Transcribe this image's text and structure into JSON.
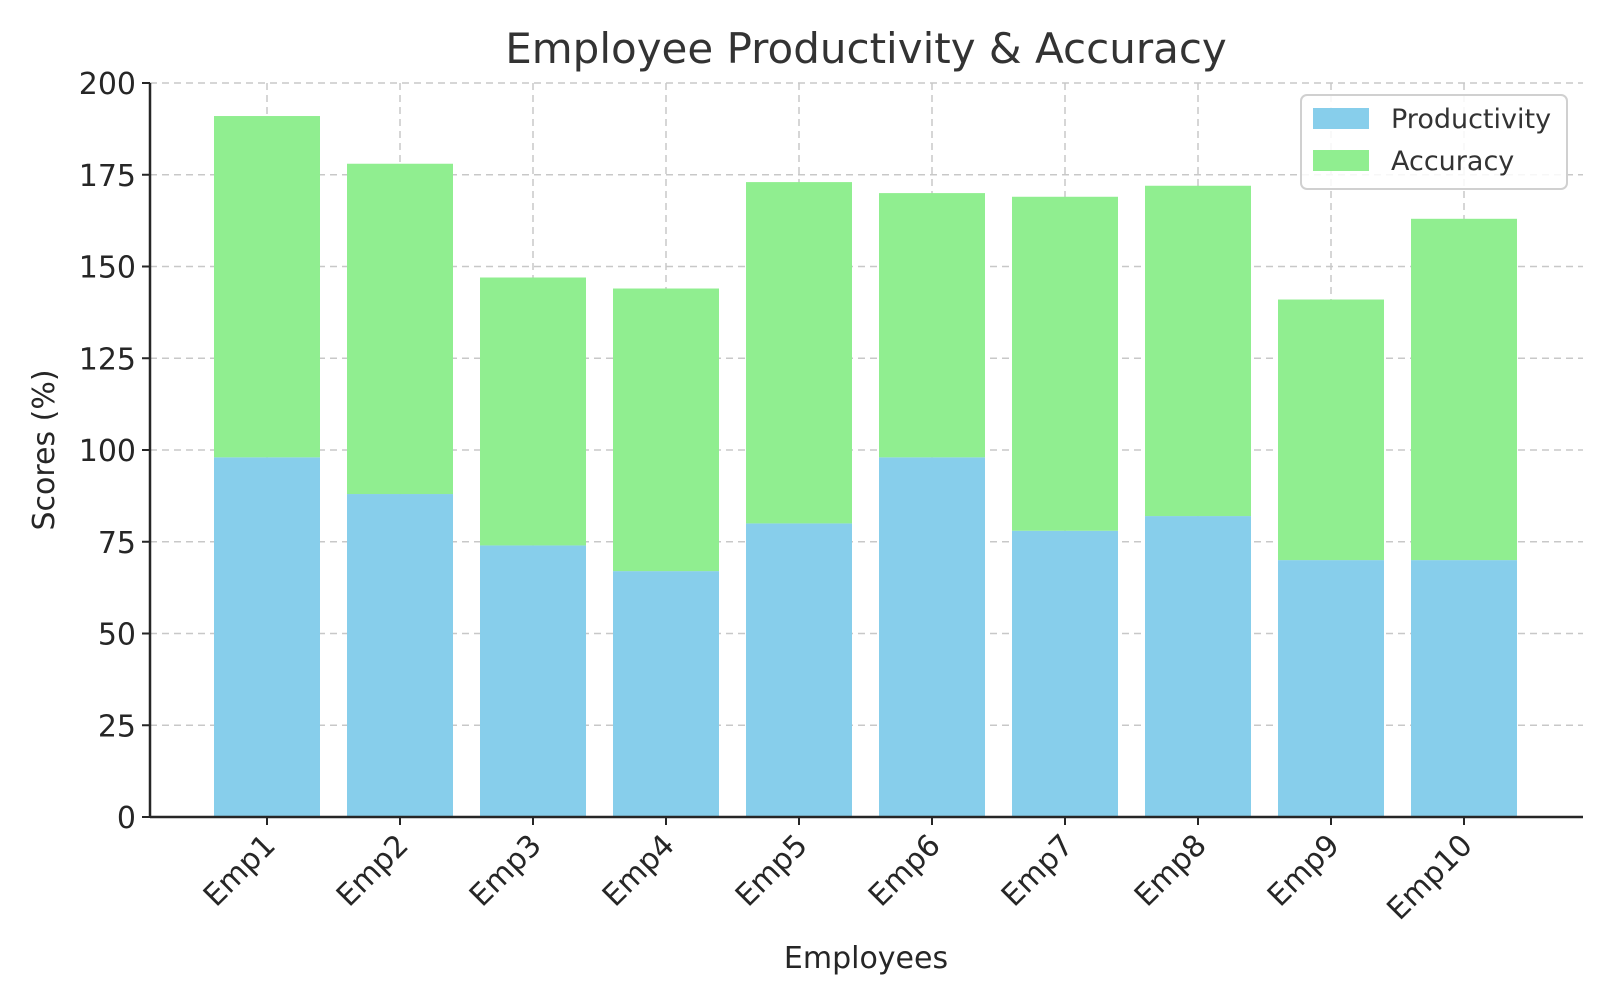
{
  "chart_data": {
    "type": "bar",
    "stacked": true,
    "title": "Employee Productivity & Accuracy",
    "xlabel": "Employees",
    "ylabel": "Scores (%)",
    "categories": [
      "Emp1",
      "Emp2",
      "Emp3",
      "Emp4",
      "Emp5",
      "Emp6",
      "Emp7",
      "Emp8",
      "Emp9",
      "Emp10"
    ],
    "series": [
      {
        "name": "Productivity",
        "color": "#87ceeb",
        "values": [
          98,
          88,
          74,
          67,
          80,
          98,
          78,
          82,
          70,
          70
        ]
      },
      {
        "name": "Accuracy",
        "color": "#90ee90",
        "values": [
          93,
          90,
          73,
          77,
          93,
          72,
          91,
          90,
          71,
          93
        ]
      }
    ],
    "ylim": [
      0,
      200
    ],
    "yticks": [
      0,
      25,
      50,
      75,
      100,
      125,
      150,
      175,
      200
    ],
    "grid": true,
    "legend_position": "top-right"
  }
}
